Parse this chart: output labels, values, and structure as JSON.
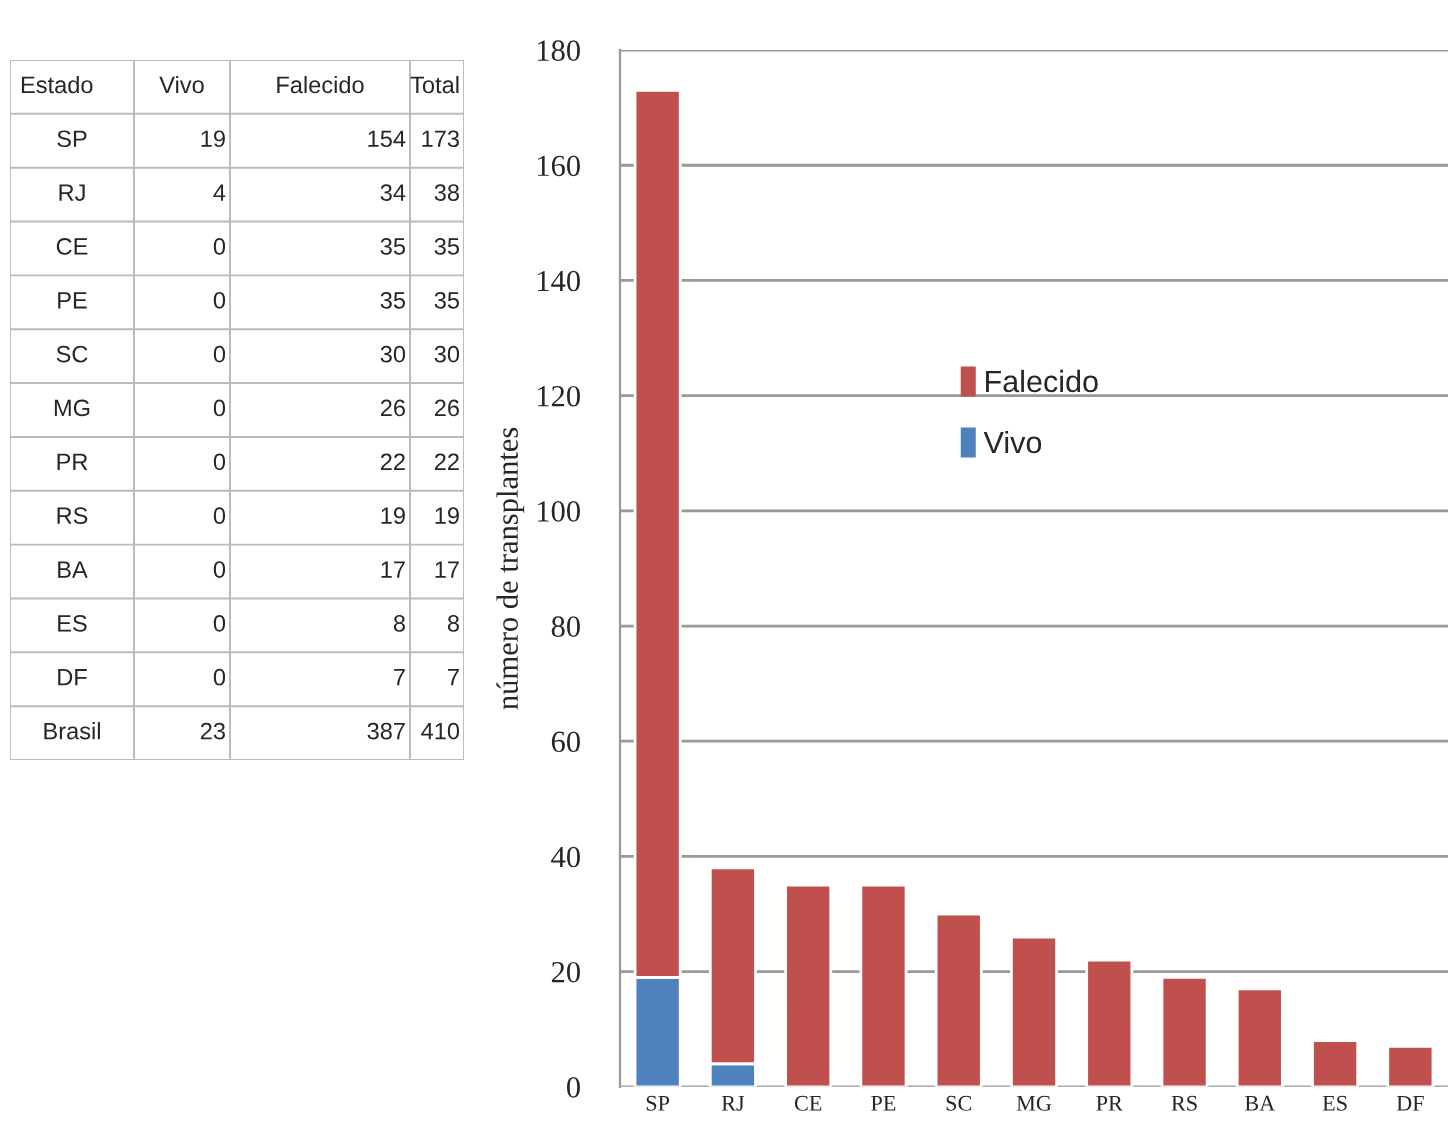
{
  "chart_data": [
    {
      "type": "other",
      "annotations": [
        "Estado",
        "Vivo",
        "Falecido",
        "Total",
        "SP",
        "19",
        "154",
        "173",
        "RJ",
        "4",
        "34",
        "38",
        "CE",
        "0",
        "35",
        "35",
        "PE",
        "0",
        "35",
        "35",
        "SC",
        "0",
        "30",
        "30",
        "MG",
        "0",
        "26",
        "26",
        "PR",
        "0",
        "22",
        "22",
        "RS",
        "0",
        "19",
        "19",
        "BA",
        "0",
        "17",
        "17",
        "ES",
        "0",
        "8",
        "8",
        "DF",
        "0",
        "7",
        "7",
        "Brasil",
        "23",
        "387",
        "410"
      ]
    },
    {
      "type": "bar",
      "stacked": true,
      "ylabel": "número de transplantes",
      "categories": [
        "SP",
        "RJ",
        "CE",
        "PE",
        "SC",
        "MG",
        "PR",
        "RS",
        "BA",
        "ES",
        "DF"
      ],
      "series": [
        {
          "name": "Vivo",
          "color": "#4f81bd",
          "values": [
            19,
            4,
            0,
            0,
            0,
            0,
            0,
            0,
            0,
            0,
            0
          ]
        },
        {
          "name": "Falecido",
          "color": "#c0504d",
          "values": [
            154,
            34,
            35,
            35,
            30,
            26,
            22,
            19,
            17,
            8,
            7
          ]
        }
      ],
      "ylim": [
        0,
        180
      ],
      "yticks": [
        0,
        20,
        40,
        60,
        80,
        100,
        120,
        140,
        160,
        180
      ],
      "grid": "y",
      "legend": "top"
    }
  ]
}
